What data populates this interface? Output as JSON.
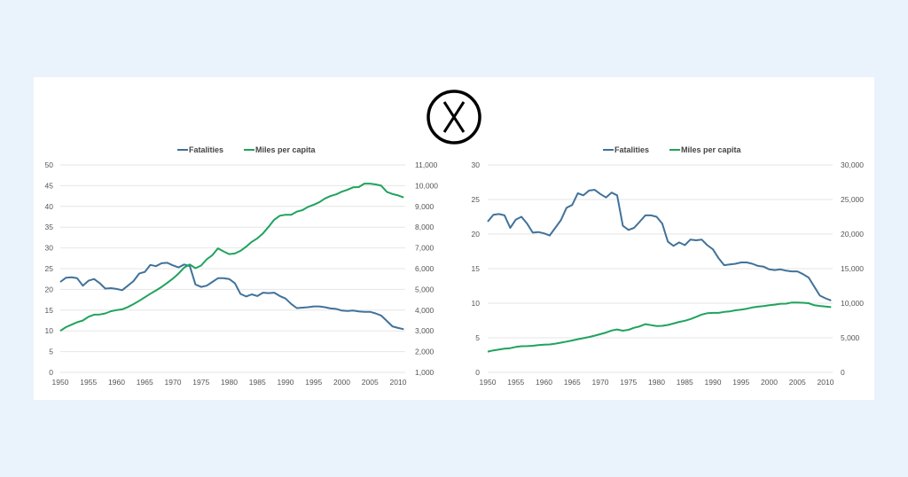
{
  "icon": "circled-x-icon",
  "colors": {
    "fatalities": "#41729a",
    "miles": "#1fa35d",
    "grid": "#e6e6e6",
    "background": "#eaf3fc",
    "panel": "#ffffff"
  },
  "chart_data": [
    {
      "type": "line",
      "legend": [
        "Fatalities",
        "Miles per capita"
      ],
      "legend_position": "top",
      "grid": true,
      "x": [
        1950,
        1951,
        1952,
        1953,
        1954,
        1955,
        1956,
        1957,
        1958,
        1959,
        1960,
        1961,
        1962,
        1963,
        1964,
        1965,
        1966,
        1967,
        1968,
        1969,
        1970,
        1971,
        1972,
        1973,
        1974,
        1975,
        1976,
        1977,
        1978,
        1979,
        1980,
        1981,
        1982,
        1983,
        1984,
        1985,
        1986,
        1987,
        1988,
        1989,
        1990,
        1991,
        1992,
        1993,
        1994,
        1995,
        1996,
        1997,
        1998,
        1999,
        2000,
        2001,
        2002,
        2003,
        2004,
        2005,
        2006,
        2007,
        2008,
        2009,
        2010,
        2011
      ],
      "xticks": [
        "1950",
        "1955",
        "1960",
        "1965",
        "1970",
        "1975",
        "1980",
        "1985",
        "1990",
        "1995",
        "2000",
        "2005",
        "2010"
      ],
      "y_left": {
        "lim": [
          0,
          50
        ],
        "ticks": [
          "0",
          "5",
          "10",
          "15",
          "20",
          "25",
          "30",
          "35",
          "40",
          "45",
          "50"
        ]
      },
      "y_right": {
        "lim": [
          1000,
          11000
        ],
        "ticks": [
          "1,000",
          "2,000",
          "3,000",
          "4,000",
          "5,000",
          "6,000",
          "7,000",
          "8,000",
          "9,000",
          "10,000",
          "11,000"
        ]
      },
      "series": [
        {
          "name": "Fatalities",
          "axis": "left",
          "values": [
            21.8,
            22.8,
            22.9,
            22.7,
            20.9,
            22.1,
            22.5,
            21.5,
            20.2,
            20.3,
            20.1,
            19.8,
            20.9,
            22.0,
            23.8,
            24.2,
            25.9,
            25.6,
            26.3,
            26.4,
            25.8,
            25.3,
            26.0,
            25.6,
            21.2,
            20.6,
            20.9,
            21.8,
            22.7,
            22.7,
            22.5,
            21.5,
            18.9,
            18.3,
            18.8,
            18.4,
            19.2,
            19.1,
            19.2,
            18.4,
            17.8,
            16.5,
            15.5,
            15.6,
            15.7,
            15.9,
            15.9,
            15.7,
            15.4,
            15.3,
            14.9,
            14.8,
            14.9,
            14.7,
            14.6,
            14.6,
            14.2,
            13.7,
            12.4,
            11.1,
            10.7,
            10.4
          ]
        },
        {
          "name": "Miles per capita",
          "axis": "right",
          "values": [
            3000,
            3180,
            3300,
            3420,
            3500,
            3680,
            3780,
            3790,
            3840,
            3950,
            4000,
            4040,
            4150,
            4290,
            4450,
            4620,
            4790,
            4950,
            5120,
            5310,
            5520,
            5760,
            6050,
            6200,
            6020,
            6150,
            6450,
            6650,
            6980,
            6830,
            6700,
            6730,
            6860,
            7060,
            7290,
            7460,
            7700,
            8020,
            8360,
            8550,
            8600,
            8600,
            8750,
            8820,
            8980,
            9080,
            9200,
            9380,
            9500,
            9580,
            9710,
            9800,
            9920,
            9930,
            10100,
            10100,
            10060,
            10000,
            9700,
            9600,
            9530,
            9430
          ]
        }
      ]
    },
    {
      "type": "line",
      "legend": [
        "Fatalities",
        "Miles per capita"
      ],
      "legend_position": "top",
      "grid": true,
      "x": [
        1950,
        1951,
        1952,
        1953,
        1954,
        1955,
        1956,
        1957,
        1958,
        1959,
        1960,
        1961,
        1962,
        1963,
        1964,
        1965,
        1966,
        1967,
        1968,
        1969,
        1970,
        1971,
        1972,
        1973,
        1974,
        1975,
        1976,
        1977,
        1978,
        1979,
        1980,
        1981,
        1982,
        1983,
        1984,
        1985,
        1986,
        1987,
        1988,
        1989,
        1990,
        1991,
        1992,
        1993,
        1994,
        1995,
        1996,
        1997,
        1998,
        1999,
        2000,
        2001,
        2002,
        2003,
        2004,
        2005,
        2006,
        2007,
        2008,
        2009,
        2010,
        2011
      ],
      "xticks": [
        "1950",
        "1955",
        "1960",
        "1965",
        "1970",
        "1975",
        "1980",
        "1985",
        "1990",
        "1995",
        "2000",
        "2005",
        "2010"
      ],
      "y_left": {
        "lim": [
          0,
          30
        ],
        "ticks": [
          "0",
          "5",
          "10",
          "15",
          "20",
          "25",
          "30"
        ]
      },
      "y_right": {
        "lim": [
          0,
          30000
        ],
        "ticks": [
          "0",
          "5,000",
          "10,000",
          "15,000",
          "20,000",
          "25,000",
          "30,000"
        ]
      },
      "series": [
        {
          "name": "Fatalities",
          "axis": "left",
          "values": [
            21.8,
            22.8,
            22.9,
            22.7,
            20.9,
            22.1,
            22.5,
            21.5,
            20.2,
            20.3,
            20.1,
            19.8,
            20.9,
            22.0,
            23.8,
            24.2,
            25.9,
            25.6,
            26.3,
            26.4,
            25.8,
            25.3,
            26.0,
            25.6,
            21.2,
            20.6,
            20.9,
            21.8,
            22.7,
            22.7,
            22.5,
            21.5,
            18.9,
            18.3,
            18.8,
            18.4,
            19.2,
            19.1,
            19.2,
            18.4,
            17.8,
            16.5,
            15.5,
            15.6,
            15.7,
            15.9,
            15.9,
            15.7,
            15.4,
            15.3,
            14.9,
            14.8,
            14.9,
            14.7,
            14.6,
            14.6,
            14.2,
            13.7,
            12.4,
            11.1,
            10.7,
            10.4
          ]
        },
        {
          "name": "Miles per capita",
          "axis": "right",
          "values": [
            3000,
            3180,
            3300,
            3420,
            3500,
            3680,
            3780,
            3790,
            3840,
            3950,
            4000,
            4040,
            4150,
            4290,
            4450,
            4620,
            4790,
            4950,
            5120,
            5310,
            5520,
            5760,
            6050,
            6200,
            6020,
            6150,
            6450,
            6650,
            6980,
            6830,
            6700,
            6730,
            6860,
            7060,
            7290,
            7460,
            7700,
            8020,
            8360,
            8550,
            8600,
            8600,
            8750,
            8820,
            8980,
            9080,
            9200,
            9380,
            9500,
            9580,
            9710,
            9800,
            9920,
            9930,
            10100,
            10100,
            10060,
            10000,
            9700,
            9600,
            9530,
            9430
          ]
        }
      ]
    }
  ]
}
